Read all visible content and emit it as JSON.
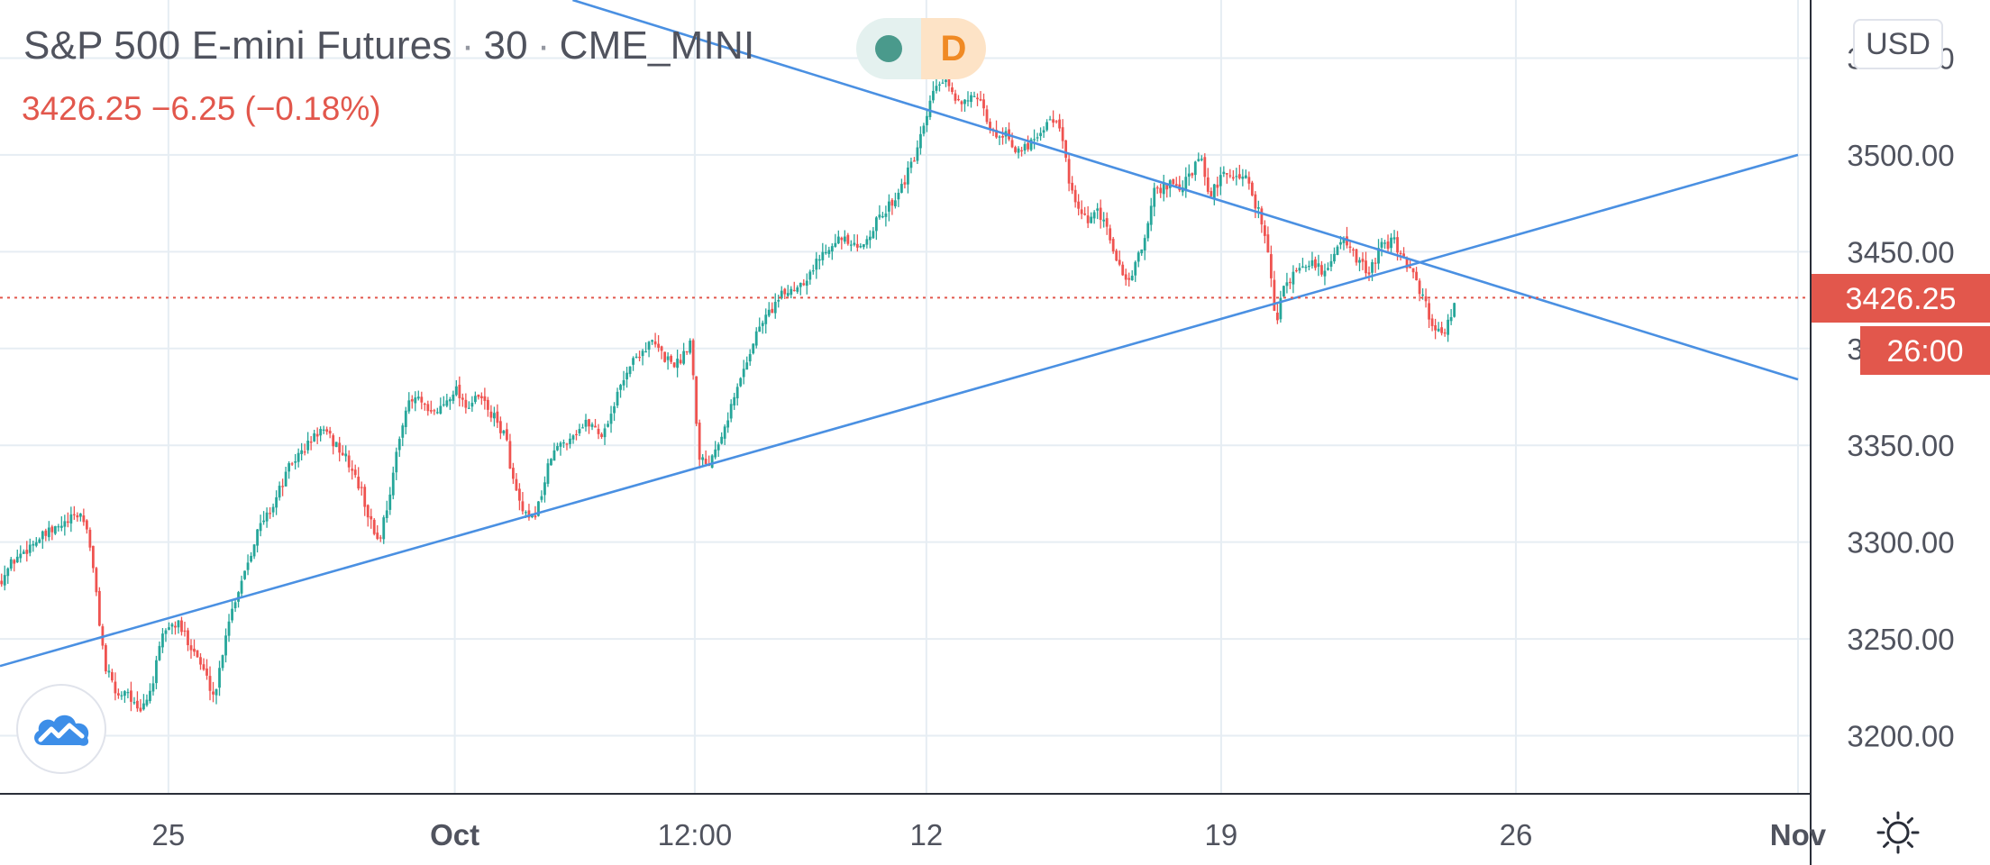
{
  "legend": {
    "symbol": "S&P 500 E-mini Futures",
    "separator": "·",
    "interval": "30",
    "exchange": "CME_MINI",
    "last": "3426.25",
    "change": "−6.25",
    "change_pct": "(−0.18%)",
    "session_badge": "D"
  },
  "currency_button": "USD",
  "price_tag": {
    "price": "3426.25",
    "countdown": "26:00"
  },
  "colors": {
    "up": "#26a69a",
    "down": "#ef5350",
    "trendline": "#4a90e2",
    "grid": "#e6edf3",
    "price_line": "#e2574c",
    "axis_text": "#50535e"
  },
  "icons": {
    "logo": "tradingview-cloud-icon",
    "settings": "sun-gear-icon"
  },
  "chart_data": {
    "type": "candlestick",
    "title": "S&P 500 E-mini Futures · 30 · CME_MINI",
    "ylim": [
      3170,
      3580
    ],
    "y_ticks": [
      "3200.00",
      "3250.00",
      "3300.00",
      "3350.00",
      "3400.00",
      "3450.00",
      "3500.00",
      "3550.00"
    ],
    "x_ticks": [
      {
        "label": "25",
        "day": 25,
        "bold": false
      },
      {
        "label": "Oct",
        "day": 31.8,
        "bold": true
      },
      {
        "label": "12:00",
        "day": 37.5,
        "bold": false
      },
      {
        "label": "12",
        "day": 43,
        "bold": false
      },
      {
        "label": "19",
        "day": 50,
        "bold": false
      },
      {
        "label": "26",
        "day": 57,
        "bold": false
      },
      {
        "label": "Nov",
        "day": 63.7,
        "bold": true
      }
    ],
    "x_range_days": [
      21,
      64
    ],
    "grid": true,
    "price_points": [
      [
        21.0,
        3280
      ],
      [
        21.3,
        3290
      ],
      [
        21.8,
        3300
      ],
      [
        22.2,
        3305
      ],
      [
        22.6,
        3310
      ],
      [
        22.9,
        3315
      ],
      [
        23.1,
        3305
      ],
      [
        23.3,
        3270
      ],
      [
        23.5,
        3235
      ],
      [
        23.8,
        3220
      ],
      [
        24.0,
        3225
      ],
      [
        24.3,
        3210
      ],
      [
        24.6,
        3225
      ],
      [
        24.9,
        3255
      ],
      [
        25.2,
        3258
      ],
      [
        25.6,
        3245
      ],
      [
        25.9,
        3230
      ],
      [
        26.1,
        3220
      ],
      [
        26.4,
        3258
      ],
      [
        26.8,
        3285
      ],
      [
        27.1,
        3305
      ],
      [
        27.5,
        3320
      ],
      [
        27.9,
        3340
      ],
      [
        28.3,
        3350
      ],
      [
        28.6,
        3358
      ],
      [
        29.0,
        3350
      ],
      [
        29.3,
        3340
      ],
      [
        29.6,
        3325
      ],
      [
        29.8,
        3310
      ],
      [
        30.0,
        3300
      ],
      [
        30.3,
        3330
      ],
      [
        30.6,
        3368
      ],
      [
        30.9,
        3375
      ],
      [
        31.2,
        3365
      ],
      [
        31.5,
        3370
      ],
      [
        31.8,
        3380
      ],
      [
        32.1,
        3370
      ],
      [
        32.4,
        3375
      ],
      [
        32.7,
        3365
      ],
      [
        33.0,
        3355
      ],
      [
        33.2,
        3330
      ],
      [
        33.4,
        3315
      ],
      [
        33.6,
        3310
      ],
      [
        33.8,
        3320
      ],
      [
        34.1,
        3345
      ],
      [
        34.4,
        3352
      ],
      [
        34.7,
        3358
      ],
      [
        35.0,
        3362
      ],
      [
        35.3,
        3355
      ],
      [
        35.6,
        3372
      ],
      [
        35.9,
        3390
      ],
      [
        36.2,
        3398
      ],
      [
        36.5,
        3403
      ],
      [
        36.8,
        3395
      ],
      [
        37.1,
        3392
      ],
      [
        37.4,
        3405
      ],
      [
        37.6,
        3345
      ],
      [
        37.8,
        3340
      ],
      [
        38.1,
        3355
      ],
      [
        38.4,
        3372
      ],
      [
        38.7,
        3392
      ],
      [
        39.0,
        3410
      ],
      [
        39.3,
        3420
      ],
      [
        39.6,
        3428
      ],
      [
        39.9,
        3432
      ],
      [
        40.2,
        3438
      ],
      [
        40.5,
        3448
      ],
      [
        40.8,
        3457
      ],
      [
        41.1,
        3455
      ],
      [
        41.4,
        3450
      ],
      [
        41.7,
        3462
      ],
      [
        42.0,
        3470
      ],
      [
        42.3,
        3480
      ],
      [
        42.6,
        3492
      ],
      [
        42.9,
        3510
      ],
      [
        43.2,
        3535
      ],
      [
        43.4,
        3538
      ],
      [
        43.7,
        3528
      ],
      [
        44.0,
        3530
      ],
      [
        44.3,
        3525
      ],
      [
        44.6,
        3510
      ],
      [
        44.9,
        3512
      ],
      [
        45.2,
        3500
      ],
      [
        45.5,
        3508
      ],
      [
        45.8,
        3515
      ],
      [
        46.0,
        3520
      ],
      [
        46.2,
        3510
      ],
      [
        46.5,
        3475
      ],
      [
        46.8,
        3465
      ],
      [
        47.1,
        3470
      ],
      [
        47.4,
        3455
      ],
      [
        47.6,
        3440
      ],
      [
        47.8,
        3435
      ],
      [
        48.1,
        3450
      ],
      [
        48.4,
        3480
      ],
      [
        48.7,
        3485
      ],
      [
        49.0,
        3482
      ],
      [
        49.3,
        3490
      ],
      [
        49.5,
        3500
      ],
      [
        49.7,
        3478
      ],
      [
        50.0,
        3488
      ],
      [
        50.3,
        3490
      ],
      [
        50.6,
        3488
      ],
      [
        50.9,
        3470
      ],
      [
        51.1,
        3455
      ],
      [
        51.3,
        3410
      ],
      [
        51.5,
        3435
      ],
      [
        51.8,
        3438
      ],
      [
        52.1,
        3445
      ],
      [
        52.4,
        3440
      ],
      [
        52.7,
        3448
      ],
      [
        52.9,
        3460
      ],
      [
        53.2,
        3445
      ],
      [
        53.5,
        3440
      ],
      [
        53.8,
        3452
      ],
      [
        54.1,
        3455
      ],
      [
        54.4,
        3445
      ],
      [
        54.7,
        3430
      ],
      [
        54.9,
        3420
      ],
      [
        55.1,
        3408
      ],
      [
        55.3,
        3410
      ],
      [
        55.6,
        3425
      ]
    ],
    "trendlines": [
      {
        "name": "resistance",
        "points": [
          [
            34.6,
            3580
          ],
          [
            63.7,
            3384
          ]
        ]
      },
      {
        "name": "support",
        "points": [
          [
            21.0,
            3236
          ],
          [
            63.7,
            3500
          ]
        ]
      }
    ],
    "current_price": 3426.25
  }
}
